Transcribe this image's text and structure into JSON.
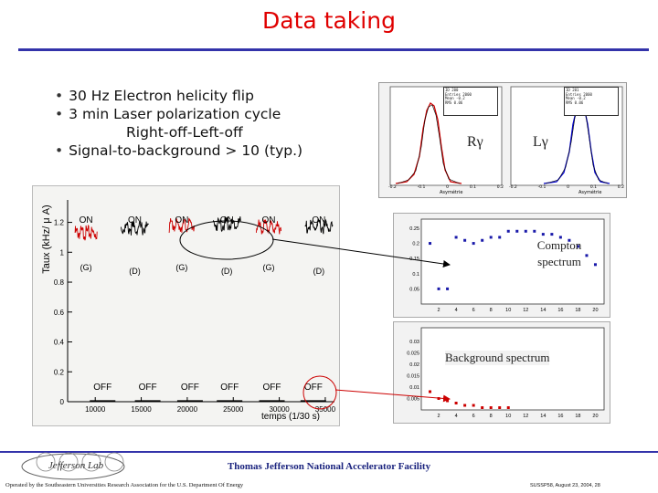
{
  "slide": {
    "title": "Data taking",
    "bullets": [
      "30 Hz Electron helicity flip",
      "3 min Laser polarization cycle",
      "Right-off-Left-off",
      "Signal-to-background > 10 (typ.)"
    ],
    "footer": {
      "lab_name": "Thomas Jefferson National Accelerator Facility",
      "operated_by": "Operated by the Southeastern Universities Research Association for the U.S. Department Of Energy",
      "conference": "SUSSP58, August 23, 2004, 28",
      "logo_text": "Jefferson Lab"
    }
  },
  "histograms": {
    "left_label": "Rγ",
    "right_label": "Lγ",
    "left_stats": [
      "ID 200",
      "Entries 2000",
      "Mean -0.2",
      "RMS 0.06"
    ],
    "right_stats": [
      "ID 201",
      "Entries 2000",
      "Mean -0.2",
      "RMS 0.06"
    ],
    "xlabel": "Asymétrie",
    "ticks": [
      "-0.2",
      "-0.15",
      "-0.1",
      "-0.05",
      "0",
      "0.05",
      "0.1",
      "0.15",
      "0.2"
    ],
    "colors": {
      "left": "#cc0000",
      "right": "#0000cc"
    }
  },
  "compton_label": "Compton spectrum",
  "background_label": "Background spectrum",
  "chart_data": [
    {
      "type": "line",
      "xlabel": "temps (1/30 s)",
      "ylabel": "Taux (kHz/ μ A)",
      "xlim": [
        7000,
        36000
      ],
      "ylim": [
        0,
        1.35
      ],
      "yticks": [
        0,
        0.2,
        0.4,
        0.6,
        0.8,
        1,
        1.2
      ],
      "xticks": [
        10000,
        15000,
        20000,
        25000,
        30000,
        35000
      ],
      "segments": [
        {
          "x_start": 7800,
          "x_end": 10200,
          "y": 1.13,
          "color": "#cc0000",
          "label": "ON",
          "polarization": "(G)"
        },
        {
          "x_start": 12800,
          "x_end": 15800,
          "y": 1.16,
          "color": "#000000",
          "label": "ON",
          "polarization": "(D)"
        },
        {
          "x_start": 18000,
          "x_end": 20800,
          "y": 1.18,
          "color": "#cc0000",
          "label": "ON",
          "polarization": "(G)"
        },
        {
          "x_start": 22800,
          "x_end": 25800,
          "y": 1.19,
          "color": "#000000",
          "label": "ON",
          "polarization": "(D)"
        },
        {
          "x_start": 27500,
          "x_end": 30200,
          "y": 1.17,
          "color": "#cc0000",
          "label": "ON",
          "polarization": "(G)"
        },
        {
          "x_start": 32800,
          "x_end": 35800,
          "y": 1.17,
          "color": "#000000",
          "label": "ON",
          "polarization": "(D)"
        }
      ],
      "off_labels": [
        "OFF",
        "OFF",
        "OFF",
        "OFF",
        "OFF",
        "OFF"
      ],
      "off_x": [
        10800,
        15700,
        20300,
        24600,
        29200,
        33700
      ]
    },
    {
      "type": "scatter",
      "name": "Compton spectrum",
      "xticks": [
        "2",
        "4",
        "6",
        "8",
        "10",
        "12",
        "14",
        "16",
        "18",
        "20"
      ],
      "yticks": [
        "0.05",
        "0.1",
        "0.15",
        "0.2",
        "0.25"
      ],
      "points": [
        [
          1,
          0.2
        ],
        [
          2,
          0.05
        ],
        [
          3,
          0.05
        ],
        [
          4,
          0.22
        ],
        [
          5,
          0.21
        ],
        [
          6,
          0.2
        ],
        [
          7,
          0.21
        ],
        [
          8,
          0.22
        ],
        [
          9,
          0.22
        ],
        [
          10,
          0.24
        ],
        [
          11,
          0.24
        ],
        [
          12,
          0.24
        ],
        [
          13,
          0.24
        ],
        [
          14,
          0.23
        ],
        [
          15,
          0.23
        ],
        [
          16,
          0.22
        ],
        [
          17,
          0.21
        ],
        [
          18,
          0.19
        ],
        [
          19,
          0.16
        ],
        [
          20,
          0.13
        ]
      ]
    },
    {
      "type": "scatter",
      "name": "Background spectrum",
      "xticks": [
        "2",
        "4",
        "6",
        "8",
        "10",
        "12",
        "14",
        "16",
        "18",
        "20"
      ],
      "yticks": [
        "0.005",
        "0.01",
        "0.015",
        "0.02",
        "0.025",
        "0.03"
      ],
      "points": [
        [
          1,
          0.008
        ],
        [
          2,
          0.005
        ],
        [
          3,
          0.004
        ],
        [
          4,
          0.003
        ],
        [
          5,
          0.002
        ],
        [
          6,
          0.002
        ],
        [
          7,
          0.001
        ],
        [
          8,
          0.001
        ],
        [
          9,
          0.001
        ],
        [
          10,
          0.001
        ]
      ]
    }
  ]
}
